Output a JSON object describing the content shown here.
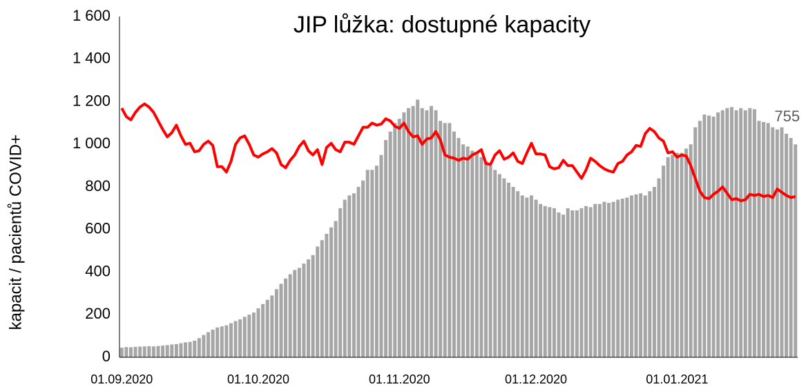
{
  "chart_data": {
    "type": "bar_line",
    "title": "JIP lůžka: dostupné kapacity",
    "ylabel": "kapacit / pacientů COVID+",
    "categories": [
      "01.09.2020",
      null,
      null,
      null,
      null,
      null,
      null,
      null,
      null,
      null,
      null,
      null,
      null,
      null,
      null,
      null,
      null,
      null,
      null,
      null,
      null,
      null,
      null,
      null,
      null,
      null,
      null,
      null,
      null,
      null,
      "01.10.2020",
      null,
      null,
      null,
      null,
      null,
      null,
      null,
      null,
      null,
      null,
      null,
      null,
      null,
      null,
      null,
      null,
      null,
      null,
      null,
      null,
      null,
      null,
      null,
      null,
      null,
      null,
      null,
      null,
      null,
      null,
      "01.11.2020",
      null,
      null,
      null,
      null,
      null,
      null,
      null,
      null,
      null,
      null,
      null,
      null,
      null,
      null,
      null,
      null,
      null,
      null,
      null,
      null,
      null,
      null,
      null,
      null,
      null,
      null,
      null,
      null,
      null,
      "01.12.2020",
      null,
      null,
      null,
      null,
      null,
      null,
      null,
      null,
      null,
      null,
      null,
      null,
      null,
      null,
      null,
      null,
      null,
      null,
      null,
      null,
      null,
      null,
      null,
      null,
      null,
      null,
      null,
      null,
      null,
      null,
      "01.01.2021",
      null,
      null,
      null,
      null,
      null,
      null,
      null,
      null,
      null,
      null,
      null,
      null,
      null,
      null,
      null,
      null,
      null,
      null,
      null,
      null,
      null,
      null,
      null,
      null,
      null,
      null
    ],
    "series": [
      {
        "kind": "bar",
        "color": "#a6a6a6",
        "values": [
          45,
          48,
          47,
          49,
          50,
          51,
          52,
          51,
          53,
          55,
          57,
          60,
          62,
          66,
          70,
          72,
          78,
          90,
          105,
          118,
          130,
          140,
          145,
          150,
          160,
          170,
          178,
          190,
          200,
          210,
          230,
          250,
          270,
          290,
          320,
          345,
          370,
          390,
          410,
          420,
          440,
          460,
          480,
          520,
          550,
          580,
          610,
          640,
          700,
          740,
          760,
          770,
          800,
          830,
          880,
          880,
          900,
          950,
          1020,
          1060,
          1100,
          1120,
          1150,
          1170,
          1180,
          1210,
          1170,
          1160,
          1180,
          1160,
          1110,
          1100,
          1100,
          1060,
          1030,
          1000,
          990,
          970,
          960,
          940,
          920,
          900,
          880,
          860,
          840,
          820,
          800,
          780,
          760,
          750,
          760,
          740,
          720,
          710,
          705,
          700,
          680,
          670,
          700,
          690,
          690,
          700,
          710,
          705,
          720,
          720,
          730,
          725,
          730,
          740,
          745,
          750,
          760,
          765,
          770,
          760,
          780,
          800,
          840,
          900,
          940,
          950,
          960,
          960,
          980,
          1000,
          1080,
          1110,
          1140,
          1135,
          1130,
          1150,
          1160,
          1170,
          1175,
          1160,
          1170,
          1160,
          1170,
          1165,
          1110,
          1105,
          1100,
          1080,
          1070,
          1080,
          1050,
          1030,
          1000
        ]
      },
      {
        "kind": "line",
        "color": "#ff0000",
        "values": [
          1170,
          1130,
          1115,
          1150,
          1175,
          1190,
          1175,
          1150,
          1110,
          1070,
          1035,
          1055,
          1090,
          1040,
          1000,
          1005,
          965,
          970,
          1000,
          1015,
          995,
          895,
          895,
          870,
          920,
          1000,
          1030,
          1040,
          1000,
          950,
          940,
          955,
          965,
          980,
          960,
          905,
          890,
          925,
          950,
          990,
          1015,
          970,
          950,
          975,
          905,
          985,
          1005,
          975,
          965,
          1010,
          1010,
          1000,
          1040,
          1080,
          1080,
          1100,
          1090,
          1095,
          1120,
          1110,
          1085,
          1075,
          1100,
          1060,
          1035,
          1040,
          1000,
          1025,
          1030,
          1060,
          1020,
          950,
          940,
          935,
          925,
          935,
          930,
          950,
          960,
          975,
          910,
          905,
          950,
          970,
          930,
          940,
          960,
          920,
          910,
          960,
          1005,
          955,
          955,
          950,
          895,
          885,
          890,
          925,
          900,
          900,
          870,
          840,
          880,
          935,
          920,
          900,
          885,
          875,
          870,
          910,
          920,
          950,
          965,
          995,
          990,
          1050,
          1075,
          1060,
          1030,
          1015,
          960,
          965,
          940,
          950,
          945,
          900,
          840,
          780,
          750,
          745,
          765,
          780,
          800,
          770,
          740,
          745,
          735,
          740,
          765,
          760,
          765,
          755,
          760,
          750,
          790,
          775,
          760,
          750,
          755
        ],
        "label_last": true
      }
    ],
    "ylim": [
      0,
      1600
    ],
    "yticks": [
      0,
      200,
      400,
      600,
      800,
      {
        "value": 1000,
        "label": "1 000"
      },
      {
        "value": 1200,
        "label": "1 200"
      },
      {
        "value": 1400,
        "label": "1 400"
      },
      {
        "value": 1600,
        "label": "1 600"
      }
    ],
    "grid": false
  }
}
